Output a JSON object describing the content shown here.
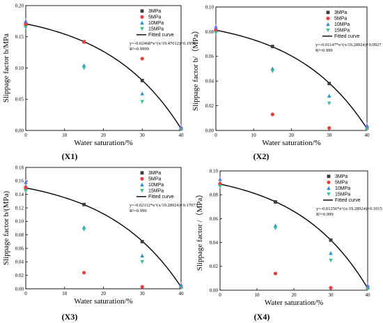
{
  "legend_labels": [
    "3MPa",
    "5MPa",
    "10MPa",
    "15MPa",
    "Fitted curve"
  ],
  "colors": {
    "s3": "#3c3c3c",
    "s5": "#e8403c",
    "s10": "#2f8fd6",
    "s15": "#3cbf9a",
    "fit": "#000000",
    "extra": "#b43cff"
  },
  "chart_data": [
    {
      "type": "scatter",
      "panel_label": "(X1)",
      "xlabel": "Water saturation/%",
      "ylabel": "Slippage factor b/MPa",
      "xlim": [
        0,
        40
      ],
      "ylim": [
        0,
        0.2
      ],
      "xticks": [
        0,
        10,
        20,
        30,
        40
      ],
      "yticks": [
        0.0,
        0.05,
        0.1,
        0.15,
        0.2
      ],
      "ytick_labels": [
        "0.00",
        "0.05",
        "0.10",
        "0.15",
        "0.20"
      ],
      "legend_position": "top-right",
      "series": [
        {
          "name": "3MPa",
          "marker": "square",
          "x": [
            0,
            15,
            30,
            40
          ],
          "y": [
            0.17,
            0.142,
            0.08,
            0.003
          ]
        },
        {
          "name": "5MPa",
          "marker": "circle",
          "x": [
            0,
            15,
            30,
            40
          ],
          "y": [
            0.17,
            0.142,
            0.115,
            0.003
          ]
        },
        {
          "name": "10MPa",
          "marker": "triangle-up",
          "x": [
            0,
            15,
            30,
            40
          ],
          "y": [
            0.175,
            0.104,
            0.059,
            0.005
          ]
        },
        {
          "name": "15MPa",
          "marker": "triangle-down",
          "x": [
            0,
            15,
            30,
            40
          ],
          "y": [
            0.165,
            0.1,
            0.046,
            0.002
          ]
        }
      ],
      "fit": {
        "a": -0.02468,
        "t": 19.47012,
        "c": 0.1955
      },
      "equation": "y=-0.02468*e^(x/19.47012)+0.1955",
      "r2": "R²=0.9999"
    },
    {
      "type": "scatter",
      "panel_label": "(X2)",
      "xlabel": "Water saturation/%",
      "ylabel": "Slippage factor b/（MPa）",
      "xlim": [
        0,
        40
      ],
      "ylim": [
        0,
        0.1
      ],
      "xticks": [
        0,
        10,
        20,
        30,
        40
      ],
      "yticks": [
        0.0,
        0.02,
        0.04,
        0.06,
        0.08,
        0.1
      ],
      "ytick_labels": [
        "0.00",
        "0.02",
        "0.04",
        "0.06",
        "0.08",
        "0.10"
      ],
      "legend_position": "top-right",
      "series": [
        {
          "name": "3MPa",
          "marker": "square",
          "x": [
            0,
            15,
            30,
            40
          ],
          "y": [
            0.081,
            0.068,
            0.038,
            0.002
          ]
        },
        {
          "name": "5MPa",
          "marker": "circle",
          "x": [
            0,
            15,
            30,
            40
          ],
          "y": [
            0.081,
            0.013,
            0.002,
            0.002
          ]
        },
        {
          "name": "10MPa",
          "marker": "triangle-up",
          "x": [
            0,
            15,
            30,
            40
          ],
          "y": [
            0.084,
            0.05,
            0.028,
            0.004
          ]
        },
        {
          "name": "15MPa",
          "marker": "triangle-down",
          "x": [
            0,
            15,
            30,
            40
          ],
          "y": [
            0.079,
            0.048,
            0.022,
            0.001
          ]
        }
      ],
      "fit": {
        "a": -0.01147,
        "t": 19.28924,
        "c": 0.0927
      },
      "equation": "y=-0.01147*e^(x/19.28924)+0.0927",
      "r2": "R²=0.999"
    },
    {
      "type": "scatter",
      "panel_label": "(X3)",
      "xlabel": "Water saturation/%",
      "ylabel": "Slippage factor b/(MPa)",
      "xlim": [
        0,
        40
      ],
      "ylim": [
        0,
        0.18
      ],
      "xticks": [
        0,
        10,
        20,
        30,
        40
      ],
      "yticks": [
        0.0,
        0.02,
        0.04,
        0.06,
        0.08,
        0.1,
        0.12,
        0.14,
        0.16,
        0.18
      ],
      "ytick_labels": [
        "0.00",
        "0.02",
        "0.04",
        "0.06",
        "0.08",
        "0.10",
        "0.12",
        "0.14",
        "0.16",
        "0.18"
      ],
      "legend_position": "top-right",
      "series": [
        {
          "name": "3MPa",
          "marker": "square",
          "x": [
            0,
            15,
            30,
            40
          ],
          "y": [
            0.15,
            0.125,
            0.07,
            0.003
          ]
        },
        {
          "name": "5MPa",
          "marker": "circle",
          "x": [
            0,
            15,
            30,
            40
          ],
          "y": [
            0.15,
            0.024,
            0.003,
            0.003
          ]
        },
        {
          "name": "10MPa",
          "marker": "triangle-up",
          "x": [
            0,
            15,
            30,
            40
          ],
          "y": [
            0.158,
            0.091,
            0.049,
            0.006
          ]
        },
        {
          "name": "15MPa",
          "marker": "triangle-down",
          "x": [
            0,
            15,
            30,
            40
          ],
          "y": [
            0.145,
            0.088,
            0.04,
            0.002
          ]
        }
      ],
      "fit": {
        "a": -0.02112,
        "t": 19.28924,
        "c": 0.17073
      },
      "equation": "y=-0.02112*e^(x/19.28924)+0.17073",
      "r2": "R²=0.999"
    },
    {
      "type": "scatter",
      "panel_label": "(X4)",
      "xlabel": "Water saturation/%",
      "ylabel": "Slippage factor /（MPa）",
      "xlim": [
        0,
        40
      ],
      "ylim": [
        0,
        0.1
      ],
      "xticks": [
        0,
        10,
        20,
        30,
        40
      ],
      "yticks": [
        0.0,
        0.02,
        0.04,
        0.06,
        0.08,
        0.1
      ],
      "ytick_labels": [
        "0.00",
        "0.02",
        "0.04",
        "0.06",
        "0.08",
        "0.10"
      ],
      "legend_position": "top-right",
      "series": [
        {
          "name": "3MPa",
          "marker": "square",
          "x": [
            0,
            15,
            30,
            40
          ],
          "y": [
            0.089,
            0.074,
            0.042,
            0.002
          ]
        },
        {
          "name": "5MPa",
          "marker": "circle",
          "x": [
            0,
            15,
            30,
            40
          ],
          "y": [
            0.089,
            0.014,
            0.002,
            0.002
          ]
        },
        {
          "name": "10MPa",
          "marker": "triangle-up",
          "x": [
            0,
            15,
            30,
            40
          ],
          "y": [
            0.093,
            0.054,
            0.031,
            0.004
          ]
        },
        {
          "name": "15MPa",
          "marker": "triangle-down",
          "x": [
            0,
            15,
            30,
            40
          ],
          "y": [
            0.087,
            0.052,
            0.025,
            0.001
          ]
        }
      ],
      "fit": {
        "a": -0.01256,
        "t": 19.28924,
        "c": 0.1015
      },
      "equation": "y=-0.01256*e^(x/19.28924)+0.1015",
      "r2": "R²=0.999"
    }
  ]
}
